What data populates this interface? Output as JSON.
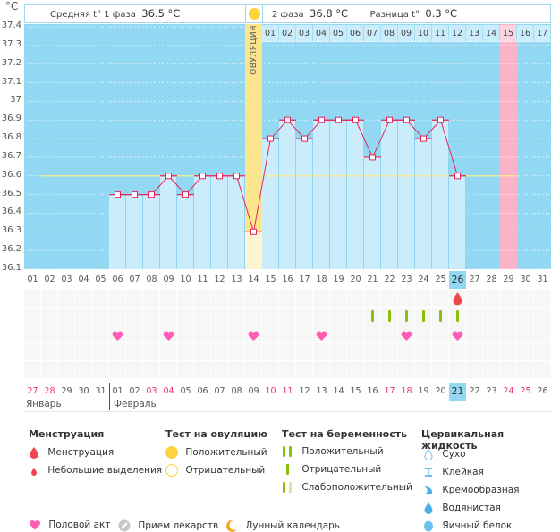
{
  "header": {
    "phase1_label": "Средняя t° 1 фаза",
    "phase1_value": "36.5 °C",
    "phase2_label": "2 фаза",
    "phase2_value": "36.8 °C",
    "diff_label": "Разница t°",
    "diff_value": "0.3 °C",
    "ovulation_label": "ОВУЛЯЦИЯ"
  },
  "colors": {
    "sky": "#92d8f2",
    "bar": "#cbecfa",
    "line": "#e5265d",
    "ovulation": "#fbe58e",
    "ovulation_light": "#fdf5d0",
    "pink": "#fbb3c9",
    "coverline": "#f5ee88",
    "heart": "#ff5cb3",
    "green": "#8cbf0d",
    "drop": "#f0474f"
  },
  "chart_data": {
    "type": "line",
    "title": "",
    "ylabel": "°C",
    "ylim": [
      36.1,
      37.4
    ],
    "yticks": [
      "37.4",
      "37.3",
      "37.2",
      "37.1",
      "37",
      "36.9",
      "36.8",
      "36.7",
      "36.6",
      "36.5",
      "36.4",
      "36.3",
      "36.2",
      "36.1"
    ],
    "coverline": 36.6,
    "cycle_days": [
      "01",
      "02",
      "03",
      "04",
      "05",
      "06",
      "07",
      "08",
      "09",
      "10",
      "11",
      "12",
      "13",
      "14",
      "15",
      "16",
      "17",
      "18",
      "19",
      "20",
      "21",
      "22",
      "23",
      "24",
      "25",
      "26",
      "27",
      "28",
      "29",
      "30",
      "31"
    ],
    "phase2_days": [
      "01",
      "02",
      "03",
      "04",
      "05",
      "06",
      "07",
      "08",
      "09",
      "10",
      "11",
      "12",
      "13",
      "14",
      "15",
      "16",
      "17"
    ],
    "ovulation_day": 14,
    "highlight_cycle_day": 26,
    "pink_day": 29,
    "temperatures": [
      {
        "day": 6,
        "value": 36.5
      },
      {
        "day": 7,
        "value": 36.5
      },
      {
        "day": 8,
        "value": 36.5
      },
      {
        "day": 9,
        "value": 36.6
      },
      {
        "day": 10,
        "value": 36.5
      },
      {
        "day": 11,
        "value": 36.6
      },
      {
        "day": 12,
        "value": 36.6
      },
      {
        "day": 13,
        "value": 36.6
      },
      {
        "day": 14,
        "value": 36.3
      },
      {
        "day": 15,
        "value": 36.8
      },
      {
        "day": 16,
        "value": 36.9
      },
      {
        "day": 17,
        "value": 36.8
      },
      {
        "day": 18,
        "value": 36.9
      },
      {
        "day": 19,
        "value": 36.9
      },
      {
        "day": 20,
        "value": 36.9
      },
      {
        "day": 21,
        "value": 36.7
      },
      {
        "day": 22,
        "value": 36.9
      },
      {
        "day": 23,
        "value": 36.9
      },
      {
        "day": 24,
        "value": 36.8
      },
      {
        "day": 25,
        "value": 36.9
      },
      {
        "day": 26,
        "value": 36.6
      }
    ],
    "events": {
      "menstruation": [
        26
      ],
      "pregnancy_test_negative": [
        21,
        22,
        23,
        24,
        25,
        26
      ],
      "intercourse": [
        6,
        9,
        14,
        18,
        23,
        26
      ]
    },
    "dates": [
      {
        "d": "27",
        "weekend": true
      },
      {
        "d": "28",
        "weekend": true
      },
      {
        "d": "29",
        "weekend": false
      },
      {
        "d": "30",
        "weekend": false
      },
      {
        "d": "31",
        "weekend": false
      },
      {
        "d": "01",
        "weekend": false
      },
      {
        "d": "02",
        "weekend": false
      },
      {
        "d": "03",
        "weekend": true
      },
      {
        "d": "04",
        "weekend": true
      },
      {
        "d": "05",
        "weekend": false
      },
      {
        "d": "06",
        "weekend": false
      },
      {
        "d": "07",
        "weekend": false
      },
      {
        "d": "08",
        "weekend": false
      },
      {
        "d": "09",
        "weekend": false
      },
      {
        "d": "10",
        "weekend": true
      },
      {
        "d": "11",
        "weekend": true
      },
      {
        "d": "12",
        "weekend": false
      },
      {
        "d": "13",
        "weekend": false
      },
      {
        "d": "14",
        "weekend": false
      },
      {
        "d": "15",
        "weekend": false
      },
      {
        "d": "16",
        "weekend": false
      },
      {
        "d": "17",
        "weekend": true
      },
      {
        "d": "18",
        "weekend": true
      },
      {
        "d": "19",
        "weekend": false
      },
      {
        "d": "20",
        "weekend": false
      },
      {
        "d": "21",
        "weekend": false
      },
      {
        "d": "22",
        "weekend": false
      },
      {
        "d": "23",
        "weekend": false
      },
      {
        "d": "24",
        "weekend": true
      },
      {
        "d": "25",
        "weekend": true
      },
      {
        "d": "26",
        "weekend": false
      }
    ],
    "today_date_index": 25,
    "months": {
      "january": "Январь",
      "february": "Февраль"
    }
  },
  "legend": {
    "menstruation": {
      "title": "Менструация",
      "items": [
        "Менструация",
        "Небольшие выделения"
      ]
    },
    "ovulation_test": {
      "title": "Тест на овуляцию",
      "items": [
        "Положительный",
        "Отрицательный"
      ]
    },
    "pregnancy_test": {
      "title": "Тест на беременность",
      "items": [
        "Положительный",
        "Отрицательный",
        "Слабоположительный"
      ]
    },
    "cervical_fluid": {
      "title": "Цервикальная жидкость",
      "items": [
        "Сухо",
        "Клейкая",
        "Кремообразная",
        "Водянистая",
        "Яичный белок"
      ]
    },
    "other": [
      "Половой акт",
      "Прием лекарств",
      "Лунный календарь"
    ]
  }
}
